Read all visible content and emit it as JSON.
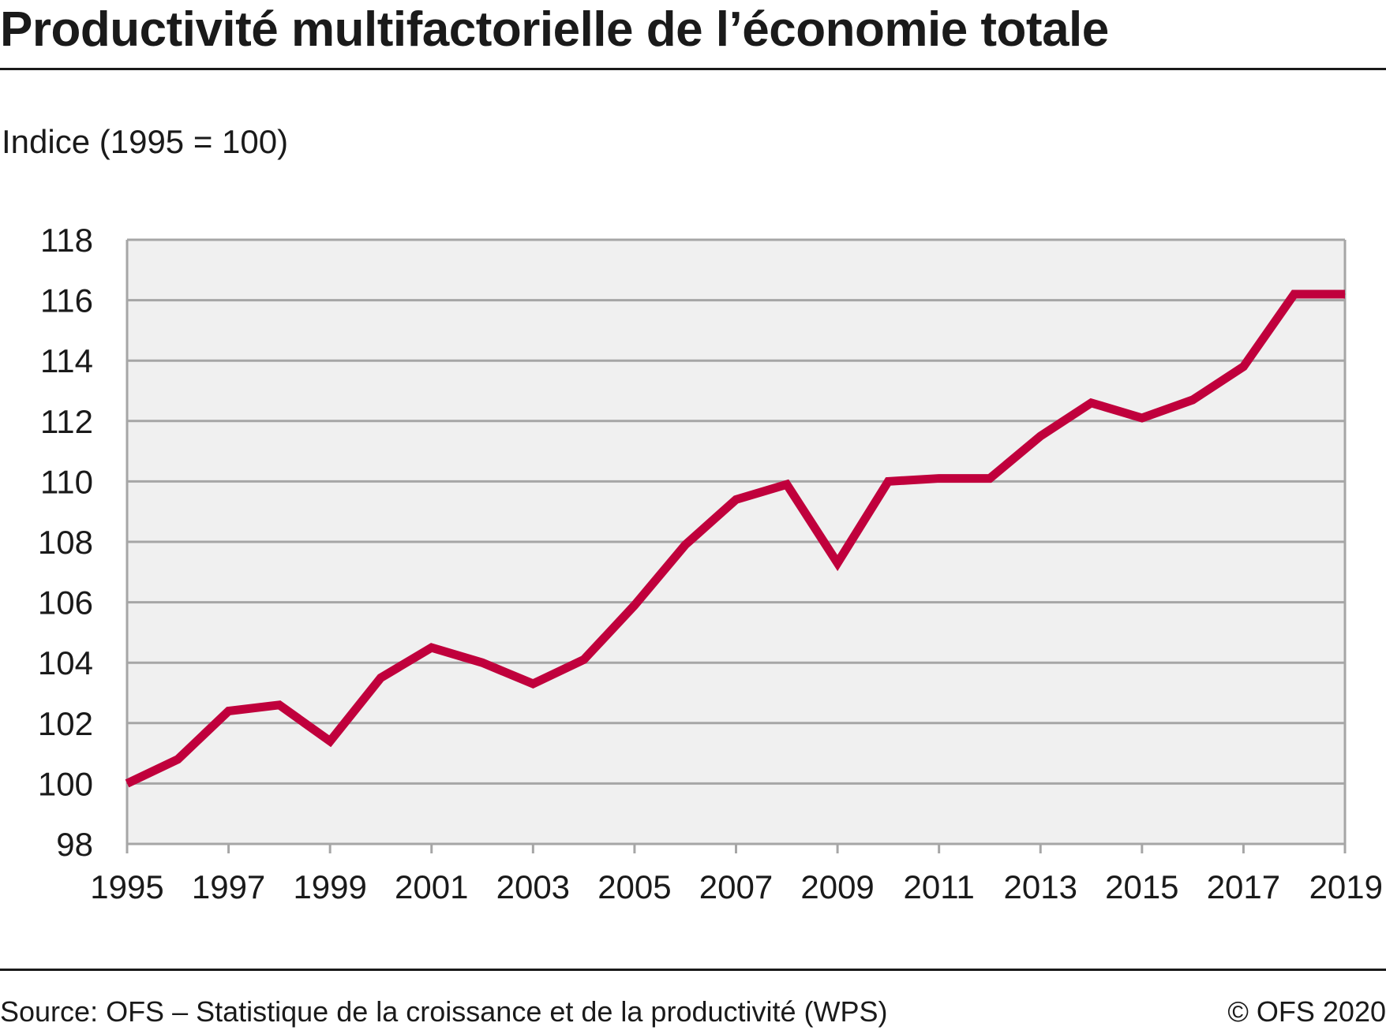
{
  "title": "Productivité multifactorielle de l’économie totale",
  "unit_label": "Indice (1995 = 100)",
  "footer": {
    "source": "Source: OFS – Statistique de la croissance et de la productivité (WPS)",
    "copyright": "© OFS 2020"
  },
  "chart_data": {
    "type": "line",
    "title": "Productivité multifactorielle de l’économie totale",
    "xlabel": "",
    "ylabel": "Indice (1995 = 100)",
    "x": [
      1995,
      1996,
      1997,
      1998,
      1999,
      2000,
      2001,
      2002,
      2003,
      2004,
      2005,
      2006,
      2007,
      2008,
      2009,
      2010,
      2011,
      2012,
      2013,
      2014,
      2015,
      2016,
      2017,
      2018,
      2019
    ],
    "x_tick_labels": [
      "1995",
      "1997",
      "1999",
      "2001",
      "2003",
      "2005",
      "2007",
      "2009",
      "2011",
      "2013",
      "2015",
      "2017",
      "2019"
    ],
    "y_tick_labels": [
      "98",
      "100",
      "102",
      "104",
      "106",
      "108",
      "110",
      "112",
      "114",
      "116",
      "118"
    ],
    "xlim": [
      1995,
      2019
    ],
    "ylim": [
      98,
      118
    ],
    "grid": true,
    "series": [
      {
        "values": [
          100.0,
          100.8,
          102.4,
          102.6,
          101.4,
          103.5,
          104.5,
          104.0,
          103.3,
          104.1,
          105.9,
          107.9,
          109.4,
          109.9,
          107.3,
          110.0,
          110.1,
          110.1,
          111.5,
          112.6,
          112.1,
          112.7,
          113.8,
          116.2,
          116.2
        ],
        "color": "#c0003c"
      }
    ],
    "colors": {
      "plot_background": "#f0f0f0",
      "gridline": "#a6a6a6",
      "line": "#c0003c"
    }
  }
}
